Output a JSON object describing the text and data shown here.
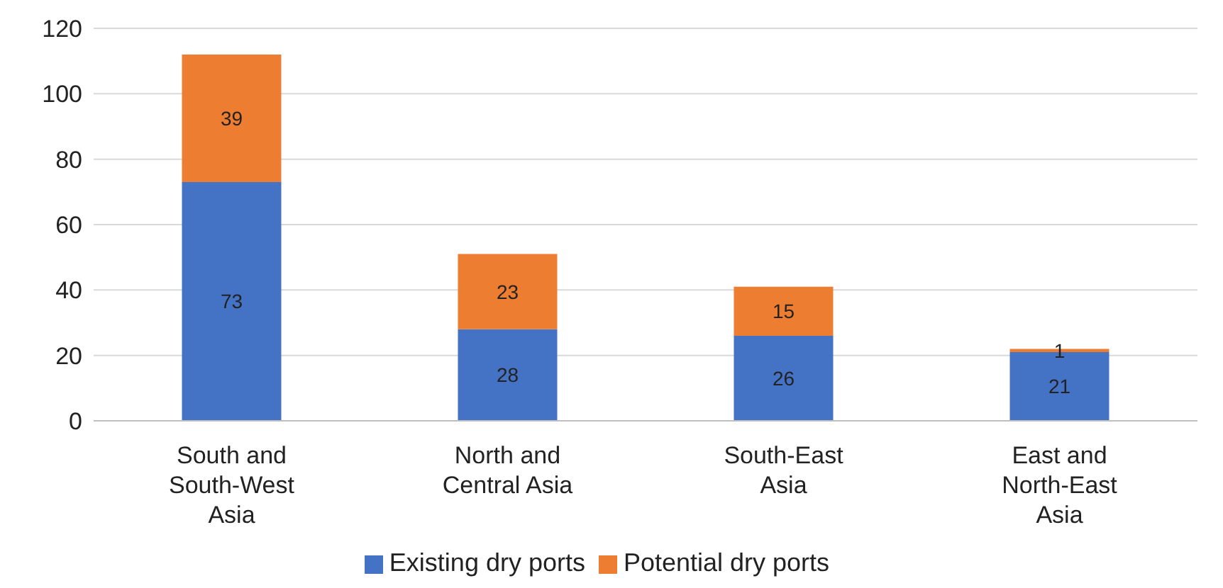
{
  "chart_data": {
    "type": "bar",
    "stacked": true,
    "categories": [
      "South and South-West Asia",
      "North and Central Asia",
      "South-East Asia",
      "East and North-East Asia"
    ],
    "series": [
      {
        "name": "Existing dry ports",
        "color": "#4472c4",
        "values": [
          73,
          28,
          26,
          21
        ]
      },
      {
        "name": "Potential dry ports",
        "color": "#ed7d31",
        "values": [
          39,
          23,
          15,
          1
        ]
      }
    ],
    "ylim": [
      0,
      120
    ],
    "yticks": [
      0,
      20,
      40,
      60,
      80,
      100,
      120
    ],
    "grid": "y",
    "legend": "bottom",
    "data_labels": true
  }
}
